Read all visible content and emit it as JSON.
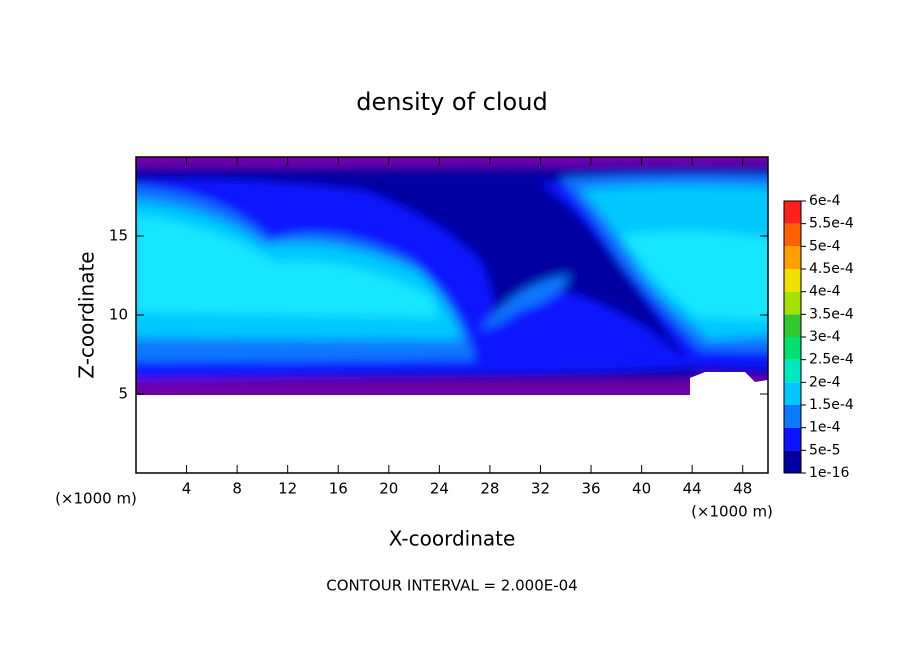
{
  "chart_data": {
    "type": "contour",
    "title": "density of cloud",
    "x_label": "X-coordinate",
    "y_label": "Z-coordinate",
    "x_unit": "(×1000 m)",
    "y_unit": "(×1000 m)",
    "footer": "CONTOUR INTERVAL = 2.000E-04",
    "xlim": [
      0,
      50
    ],
    "ylim": [
      0,
      20
    ],
    "xticks": [
      4,
      8,
      12,
      16,
      20,
      24,
      28,
      32,
      36,
      40,
      44,
      48
    ],
    "yticks": [
      5,
      10,
      15
    ],
    "colorbar": {
      "levels": [
        {
          "value": 1e-16,
          "label": "1e-16"
        },
        {
          "value": 5e-05,
          "label": "5e-5"
        },
        {
          "value": 0.0001,
          "label": "1e-4"
        },
        {
          "value": 0.00015,
          "label": "1.5e-4"
        },
        {
          "value": 0.0002,
          "label": "2e-4"
        },
        {
          "value": 0.00025,
          "label": "2.5e-4"
        },
        {
          "value": 0.0003,
          "label": "3e-4"
        },
        {
          "value": 0.00035,
          "label": "3.5e-4"
        },
        {
          "value": 0.0004,
          "label": "4e-4"
        },
        {
          "value": 0.00045,
          "label": "4.5e-4"
        },
        {
          "value": 0.0005,
          "label": "5e-4"
        },
        {
          "value": 0.00055,
          "label": "5.5e-4"
        },
        {
          "value": 0.0006,
          "label": "6e-4"
        }
      ],
      "colors": [
        "#7000a8",
        "#0000a0",
        "#0a14ff",
        "#0a78ff",
        "#00c8ff",
        "#00e8c0",
        "#00e070",
        "#30c830",
        "#a8e000",
        "#f0e000",
        "#ffa000",
        "#ff6000",
        "#ff2020",
        "#ff8080"
      ]
    }
  }
}
